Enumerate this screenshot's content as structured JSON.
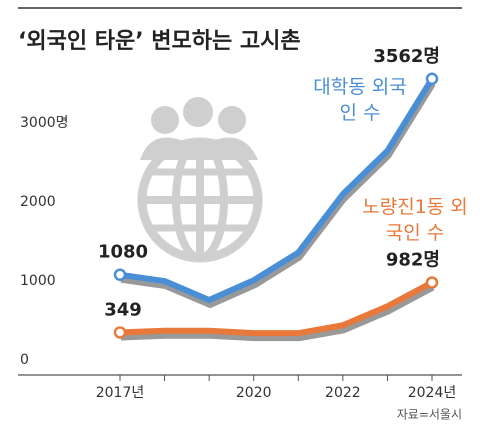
{
  "chart_data": {
    "type": "line",
    "title": "‘외국인 타운’ 변모하는 고시촌",
    "source": "자료=서울시",
    "categories": [
      "2017년",
      null,
      null,
      "2020",
      null,
      "2022",
      null,
      "2024년"
    ],
    "series": [
      {
        "name": "대학동 외국인 수",
        "color": "#4a8fd6",
        "values": [
          1080,
          1000,
          760,
          1010,
          1360,
          2100,
          2650,
          3562
        ],
        "value_labels": [
          "1080",
          null,
          null,
          null,
          null,
          null,
          null,
          "3562명"
        ]
      },
      {
        "name": "노량진1동 외국인 수",
        "color": "#e8793a",
        "values": [
          349,
          370,
          370,
          340,
          340,
          440,
          680,
          982
        ],
        "value_labels": [
          "349",
          null,
          null,
          null,
          null,
          null,
          null,
          "982명"
        ]
      }
    ],
    "ylim": [
      -190,
      3800
    ],
    "yticks": [
      0,
      1000,
      2000,
      {
        "value": 3000,
        "label": "3000명"
      }
    ],
    "grid": false
  }
}
